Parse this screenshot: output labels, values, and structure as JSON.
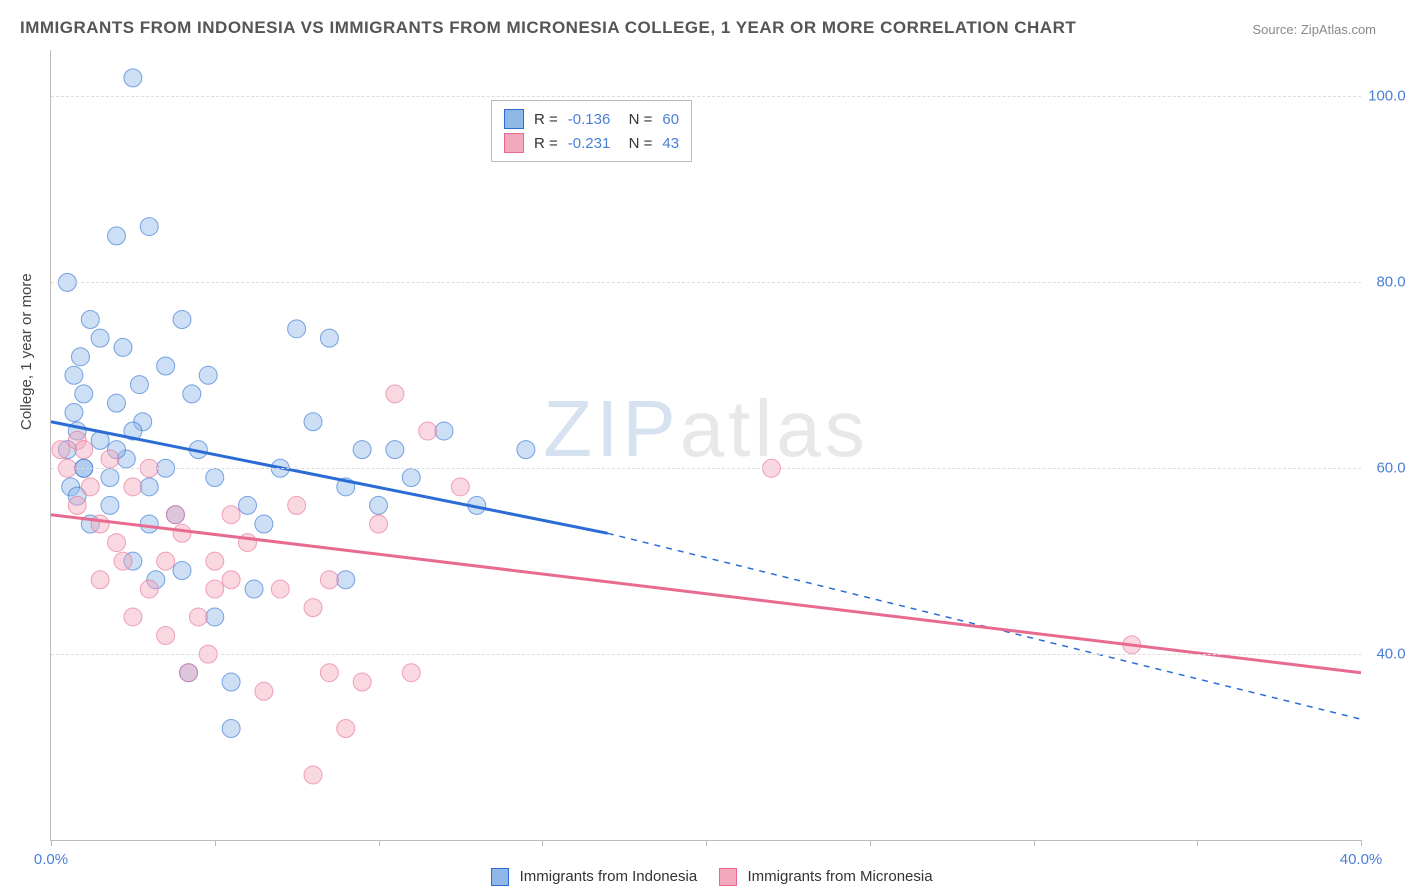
{
  "title": "IMMIGRANTS FROM INDONESIA VS IMMIGRANTS FROM MICRONESIA COLLEGE, 1 YEAR OR MORE CORRELATION CHART",
  "source": "Source: ZipAtlas.com",
  "ylabel": "College, 1 year or more",
  "watermark_a": "ZIP",
  "watermark_b": "atlas",
  "chart": {
    "type": "scatter",
    "xlim": [
      0,
      40
    ],
    "ylim": [
      20,
      105
    ],
    "xticks": [
      0,
      5,
      10,
      15,
      20,
      25,
      30,
      35,
      40
    ],
    "xtick_labels": {
      "0": "0.0%",
      "40": "40.0%"
    },
    "ygrid": [
      40,
      60,
      80,
      100
    ],
    "ytick_labels": {
      "40": "40.0%",
      "60": "60.0%",
      "80": "80.0%",
      "100": "100.0%"
    },
    "marker_radius": 9,
    "marker_opacity": 0.45,
    "background_color": "#ffffff",
    "grid_color": "#dddddd"
  },
  "series": [
    {
      "label": "Immigrants from Indonesia",
      "color": "#8fb8e8",
      "line_color": "#2b6cd4",
      "R": "-0.136",
      "N": "60",
      "trend": {
        "x1": 0,
        "y1": 65,
        "x2_solid": 17,
        "y2_solid": 53,
        "x2": 40,
        "y2": 33
      },
      "points": [
        [
          0.5,
          62
        ],
        [
          0.5,
          80
        ],
        [
          0.6,
          58
        ],
        [
          0.7,
          70
        ],
        [
          0.7,
          66
        ],
        [
          0.8,
          64
        ],
        [
          0.9,
          72
        ],
        [
          1.0,
          68
        ],
        [
          1.0,
          60
        ],
        [
          1.2,
          76
        ],
        [
          1.2,
          54
        ],
        [
          1.5,
          74
        ],
        [
          1.5,
          63
        ],
        [
          1.8,
          56
        ],
        [
          2.0,
          85
        ],
        [
          2.0,
          67
        ],
        [
          2.2,
          73
        ],
        [
          2.3,
          61
        ],
        [
          2.5,
          50
        ],
        [
          2.5,
          102
        ],
        [
          2.7,
          69
        ],
        [
          2.8,
          65
        ],
        [
          3.0,
          58
        ],
        [
          3.0,
          86
        ],
        [
          3.2,
          48
        ],
        [
          3.5,
          71
        ],
        [
          3.5,
          60
        ],
        [
          3.8,
          55
        ],
        [
          4.0,
          49
        ],
        [
          4.0,
          76
        ],
        [
          4.2,
          38
        ],
        [
          4.3,
          68
        ],
        [
          4.5,
          62
        ],
        [
          4.8,
          70
        ],
        [
          5.0,
          44
        ],
        [
          5.0,
          59
        ],
        [
          5.5,
          37
        ],
        [
          5.5,
          32
        ],
        [
          6.0,
          56
        ],
        [
          6.2,
          47
        ],
        [
          6.5,
          54
        ],
        [
          7.0,
          60
        ],
        [
          7.5,
          75
        ],
        [
          8.0,
          65
        ],
        [
          8.5,
          74
        ],
        [
          9.0,
          58
        ],
        [
          9.0,
          48
        ],
        [
          9.5,
          62
        ],
        [
          10.0,
          56
        ],
        [
          10.5,
          62
        ],
        [
          11.0,
          59
        ],
        [
          12.0,
          64
        ],
        [
          13.0,
          56
        ],
        [
          14.5,
          62
        ],
        [
          3.0,
          54
        ],
        [
          1.0,
          60
        ],
        [
          2.0,
          62
        ],
        [
          0.8,
          57
        ],
        [
          1.8,
          59
        ],
        [
          2.5,
          64
        ]
      ]
    },
    {
      "label": "Immigrants from Micronesia",
      "color": "#f2a9bd",
      "line_color": "#e86b8f",
      "R": "-0.231",
      "N": "43",
      "trend": {
        "x1": 0,
        "y1": 55,
        "x2_solid": 40,
        "y2_solid": 38,
        "x2": 40,
        "y2": 38
      },
      "points": [
        [
          0.3,
          62
        ],
        [
          0.5,
          60
        ],
        [
          0.8,
          56
        ],
        [
          0.8,
          63
        ],
        [
          1.0,
          62
        ],
        [
          1.2,
          58
        ],
        [
          1.5,
          54
        ],
        [
          1.5,
          48
        ],
        [
          1.8,
          61
        ],
        [
          2.0,
          52
        ],
        [
          2.2,
          50
        ],
        [
          2.5,
          58
        ],
        [
          2.5,
          44
        ],
        [
          3.0,
          47
        ],
        [
          3.0,
          60
        ],
        [
          3.5,
          42
        ],
        [
          3.5,
          50
        ],
        [
          4.0,
          53
        ],
        [
          4.2,
          38
        ],
        [
          4.5,
          44
        ],
        [
          5.0,
          47
        ],
        [
          5.0,
          50
        ],
        [
          5.5,
          48
        ],
        [
          5.5,
          55
        ],
        [
          6.0,
          52
        ],
        [
          6.5,
          36
        ],
        [
          7.0,
          47
        ],
        [
          7.5,
          56
        ],
        [
          8.0,
          45
        ],
        [
          8.5,
          38
        ],
        [
          8.5,
          48
        ],
        [
          9.0,
          32
        ],
        [
          9.5,
          37
        ],
        [
          10.0,
          54
        ],
        [
          10.5,
          68
        ],
        [
          11.0,
          38
        ],
        [
          11.5,
          64
        ],
        [
          12.5,
          58
        ],
        [
          8.0,
          27
        ],
        [
          22.0,
          60
        ],
        [
          33.0,
          41
        ],
        [
          4.8,
          40
        ],
        [
          3.8,
          55
        ]
      ]
    }
  ],
  "legend_bottom": {
    "a": "Immigrants from Indonesia",
    "b": "Immigrants from Micronesia"
  }
}
